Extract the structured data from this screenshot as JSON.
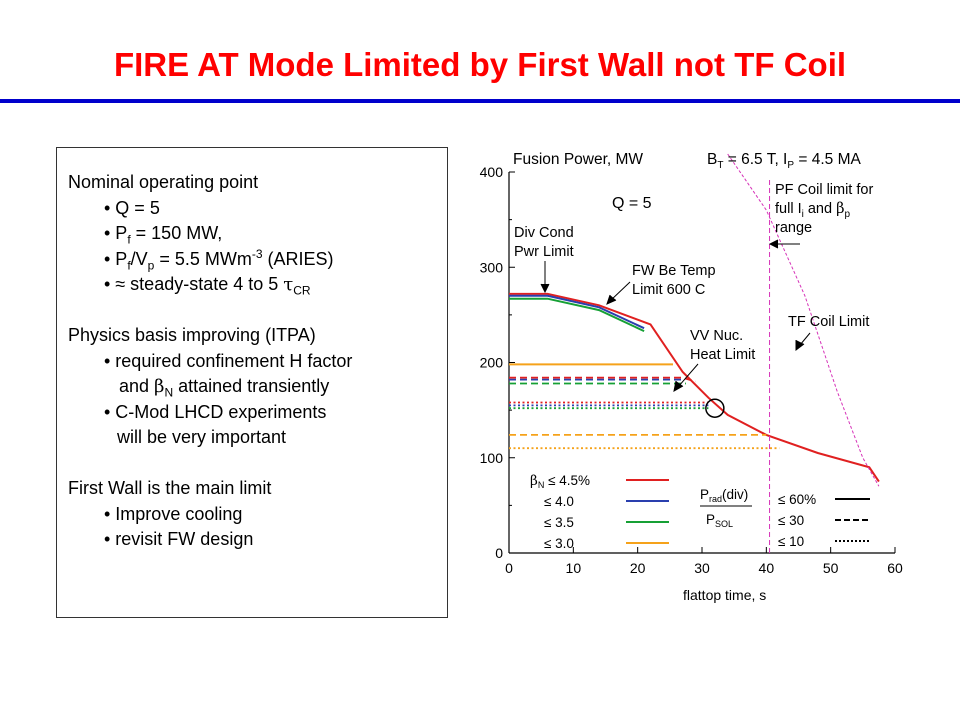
{
  "slide": {
    "title": "FIRE AT Mode Limited by First Wall not TF Coil"
  },
  "textbox": {
    "heading1": "Nominal operating point",
    "b1": "• Q = 5",
    "b2_pre": "• P",
    "b2_sub": "f",
    "b2_post": " = 150 MW,",
    "b3_pre": "• P",
    "b3_sub1": "f",
    "b3_mid": "/V",
    "b3_sub2": "p",
    "b3_mid2": " = 5.5 MWm",
    "b3_sup": "-3",
    "b3_post": " (ARIES)",
    "b4_pre": "• ≈ steady-state 4 to 5 ",
    "b4_sym": "τ",
    "b4_sub": "CR",
    "heading2": "Physics basis improving (ITPA)",
    "b5": "• required confinement H factor",
    "b5b_pre": "and ",
    "b5b_sym": "β",
    "b5b_sub": "N",
    "b5b_post": " attained transiently",
    "b6": "• C-Mod LHCD experiments",
    "b6b": "will be very important",
    "heading3": "First Wall is the main limit",
    "b7": "• Improve cooling",
    "b8": "• revisit FW design"
  },
  "chart_data": {
    "type": "line",
    "title": "Fusion Power, MW",
    "header_bt": "B",
    "header_bt_sub": "T",
    "header_bt_val": " = 6.5 T, I",
    "header_ip_sub": "P",
    "header_ip_val": " = 4.5 MA",
    "xlabel": "flattop time, s",
    "xlim": [
      0,
      60
    ],
    "ylim": [
      0,
      400
    ],
    "xticks": [
      "0",
      "10",
      "20",
      "30",
      "40",
      "50",
      "60"
    ],
    "yticks": [
      "0",
      "100",
      "200",
      "300",
      "400"
    ],
    "annotations": {
      "q": "Q = 5",
      "div_cond_1": "Div Cond",
      "div_cond_2": "Pwr Limit",
      "fw_be_1": "FW Be Temp",
      "fw_be_2": "Limit 600 C",
      "vv_1": "VV Nuc.",
      "vv_2": "Heat Limit",
      "pf_1": "PF Coil limit for",
      "pf_2a": "full I",
      "pf_2b": "i",
      "pf_2c": " and ",
      "pf_2d": "β",
      "pf_2e": "p",
      "pf_3": "range",
      "tf": "TF Coil Limit"
    },
    "legend": {
      "beta_rows": [
        {
          "label_pre": "β",
          "label_sub": "N",
          "label_post": " ≤ 4.5%",
          "color": "#e02020"
        },
        {
          "label_pre": "",
          "label_sub": "",
          "label_post": "≤ 4.0",
          "color": "#2a3fae"
        },
        {
          "label_pre": "",
          "label_sub": "",
          "label_post": "≤ 3.5",
          "color": "#16a035"
        },
        {
          "label_pre": "",
          "label_sub": "",
          "label_post": "≤ 3.0",
          "color": "#f5a21a"
        }
      ],
      "prad_num": "P",
      "prad_num_sub": "rad",
      "prad_num_post": "(div)",
      "prad_den": "P",
      "prad_den_sub": "SOL",
      "style_rows": [
        {
          "label": "≤ 60%",
          "style": "solid"
        },
        {
          "label": "≤ 30",
          "style": "dashed"
        },
        {
          "label": "≤ 10",
          "style": "dotted"
        }
      ]
    },
    "series": [
      {
        "color": "#e02020",
        "style": "solid",
        "x": [
          0,
          6,
          14,
          22,
          27,
          31,
          34,
          40,
          48,
          56,
          57.5
        ],
        "y": [
          272,
          272,
          260,
          240,
          190,
          163,
          145,
          124,
          105,
          90,
          75
        ]
      },
      {
        "color": "#2a3fae",
        "style": "solid",
        "x": [
          0,
          6,
          14,
          21
        ],
        "y": [
          270,
          270,
          258,
          236
        ]
      },
      {
        "color": "#16a035",
        "style": "solid",
        "x": [
          0,
          6,
          14,
          21
        ],
        "y": [
          267,
          267,
          255,
          233
        ]
      },
      {
        "color": "#f5a21a",
        "style": "solid",
        "x": [
          0,
          25.5
        ],
        "y": [
          198,
          198
        ]
      },
      {
        "color": "#e02020",
        "style": "dashed",
        "x": [
          0,
          27,
          29
        ],
        "y": [
          184,
          184,
          180
        ]
      },
      {
        "color": "#2a3fae",
        "style": "dashed",
        "x": [
          0,
          27
        ],
        "y": [
          182,
          182
        ]
      },
      {
        "color": "#16a035",
        "style": "dashed",
        "x": [
          0,
          27.5
        ],
        "y": [
          178,
          178
        ]
      },
      {
        "color": "#f5a21a",
        "style": "dashed",
        "x": [
          0,
          40
        ],
        "y": [
          124,
          124
        ]
      },
      {
        "color": "#e02020",
        "style": "dotted",
        "x": [
          0,
          31
        ],
        "y": [
          158,
          158
        ]
      },
      {
        "color": "#2a3fae",
        "style": "dotted",
        "x": [
          0,
          31
        ],
        "y": [
          155,
          155
        ]
      },
      {
        "color": "#16a035",
        "style": "dotted",
        "x": [
          0,
          31
        ],
        "y": [
          152,
          152
        ]
      },
      {
        "color": "#f5a21a",
        "style": "dotted",
        "x": [
          0,
          42
        ],
        "y": [
          110,
          110
        ]
      }
    ],
    "limits": {
      "pf_coil_x": 40.5,
      "tf_coil": {
        "color": "#d633b8",
        "x": [
          34,
          40,
          46,
          51,
          55,
          57.5
        ],
        "y": [
          420,
          360,
          270,
          170,
          100,
          70
        ]
      },
      "vv_circle": {
        "x": 32,
        "y": 152
      }
    }
  }
}
